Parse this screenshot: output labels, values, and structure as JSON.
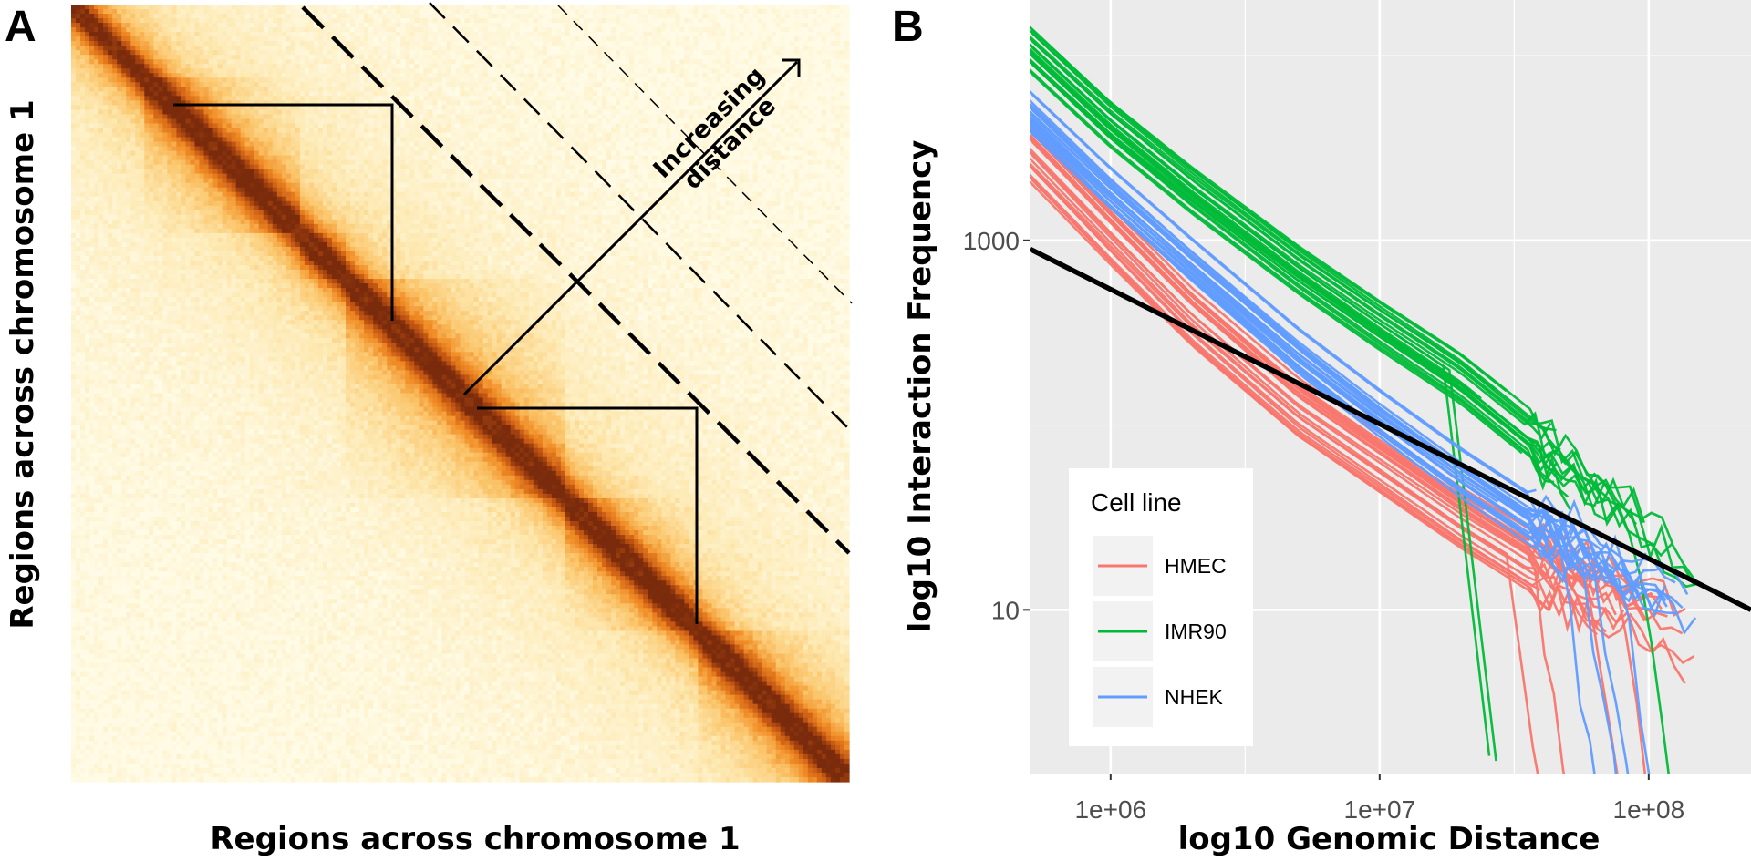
{
  "panel_a": {
    "letter": "A",
    "xlabel": "Regions across chromosome 1",
    "ylabel": "Regions across chromosome 1",
    "annotation_line1": "Increasing",
    "annotation_line2": "distance"
  },
  "panel_b": {
    "letter": "B",
    "xlabel": "log10 Genomic Distance",
    "ylabel": "log10 Interaction Frequency",
    "legend_title": "Cell line"
  },
  "chart_data": [
    {
      "type": "heatmap",
      "panel": "A",
      "xlabel": "Regions across chromosome 1",
      "ylabel": "Regions across chromosome 1",
      "colormap": [
        "#fffbe6",
        "#fde8b0",
        "#fbc56a",
        "#f08b24",
        "#c35512",
        "#7a2b0c"
      ],
      "grid_size": 170,
      "matrix": "symmetric Hi-C contact map, strongest on the main diagonal, decaying with distance from it",
      "annotations": [
        "Increasing",
        "distance"
      ]
    },
    {
      "type": "line",
      "panel": "B",
      "xlabel": "log10 Genomic Distance",
      "ylabel": "log10 Interaction Frequency",
      "x_scale": "log",
      "y_scale": "log",
      "xlim": [
        500000,
        240000000
      ],
      "ylim": [
        1.3,
        20000
      ],
      "x_ticks": [
        1000000,
        10000000,
        100000000
      ],
      "x_tick_labels": [
        "1e+06",
        "1e+07",
        "1e+08"
      ],
      "y_ticks": [
        10,
        1000
      ],
      "y_tick_labels": [
        "10",
        "1000"
      ],
      "grid": true,
      "background": "#ebebeb",
      "legend_position": "bottom-left",
      "series": [
        {
          "name": "HMEC",
          "color": "#f8766d",
          "typical_curve": {
            "x": [
              500000,
              1000000,
              2000000,
              5000000,
              10000000,
              20000000,
              40000000,
              80000000,
              150000000
            ],
            "y": [
              3000,
              1050,
              380,
              120,
              60,
              30,
              16,
              10,
              6
            ]
          }
        },
        {
          "name": "IMR90",
          "color": "#00ba38",
          "typical_curve": {
            "x": [
              500000,
              1000000,
              2000000,
              5000000,
              10000000,
              20000000,
              40000000,
              80000000,
              150000000
            ],
            "y": [
              11000,
              4300,
              1900,
              700,
              350,
              180,
              80,
              35,
              18
            ]
          }
        },
        {
          "name": "NHEK",
          "color": "#619cff",
          "typical_curve": {
            "x": [
              500000,
              1000000,
              2000000,
              5000000,
              10000000,
              20000000,
              40000000,
              80000000,
              150000000
            ],
            "y": [
              5000,
              1900,
              780,
              250,
              115,
              55,
              28,
              16,
              10
            ]
          }
        },
        {
          "name": "",
          "color": "#000000",
          "x": [
            500000,
            240000000
          ],
          "y": [
            900,
            10
          ]
        }
      ]
    }
  ]
}
